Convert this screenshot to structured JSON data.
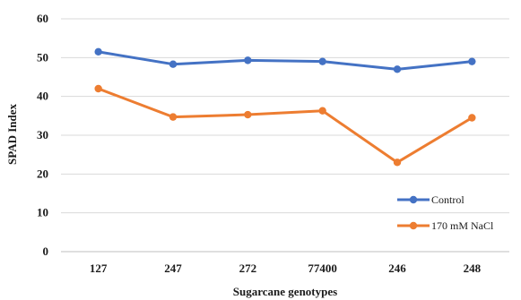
{
  "chart_data": {
    "type": "line",
    "categories": [
      "127",
      "247",
      "272",
      "77400",
      "246",
      "248"
    ],
    "series": [
      {
        "name": "Control",
        "values": [
          51.5,
          48.3,
          49.3,
          49.0,
          47.0,
          49.0
        ],
        "color": "#4472C4"
      },
      {
        "name": "170 mM NaCl",
        "values": [
          42.0,
          34.7,
          35.3,
          36.3,
          23.0,
          34.5
        ],
        "color": "#ED7D31"
      }
    ],
    "xlabel": "Sugarcane genotypes",
    "ylabel": "SPAD Index",
    "ylim": [
      0,
      60
    ],
    "yticks": [
      "0",
      "10",
      "20",
      "30",
      "40",
      "50",
      "60"
    ],
    "grid": true,
    "legend_position": "bottom-right"
  }
}
